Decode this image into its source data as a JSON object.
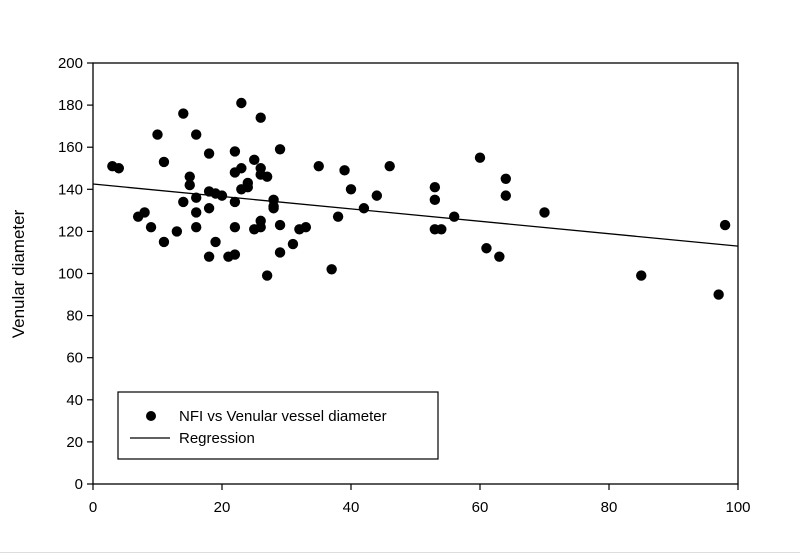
{
  "chart_data": {
    "type": "scatter",
    "title": "",
    "xlabel": "",
    "ylabel": "Venular diameter",
    "xlim": [
      0,
      100
    ],
    "ylim": [
      0,
      200
    ],
    "xticks": [
      0,
      20,
      40,
      60,
      80,
      100
    ],
    "yticks": [
      0,
      20,
      40,
      60,
      80,
      100,
      120,
      140,
      160,
      180,
      200
    ],
    "grid": false,
    "legend_position": "bottom-left",
    "series": [
      {
        "name": "NFI vs Venular vessel diameter",
        "kind": "scatter",
        "color": "#000000",
        "points": [
          [
            3,
            151
          ],
          [
            4,
            150
          ],
          [
            7,
            127
          ],
          [
            8,
            129
          ],
          [
            9,
            122
          ],
          [
            10,
            166
          ],
          [
            11,
            153
          ],
          [
            11,
            115
          ],
          [
            13,
            120
          ],
          [
            14,
            176
          ],
          [
            14,
            134
          ],
          [
            15,
            146
          ],
          [
            15,
            142
          ],
          [
            16,
            166
          ],
          [
            16,
            136
          ],
          [
            16,
            129
          ],
          [
            16,
            122
          ],
          [
            18,
            157
          ],
          [
            18,
            139
          ],
          [
            18,
            131
          ],
          [
            18,
            108
          ],
          [
            19,
            138
          ],
          [
            19,
            115
          ],
          [
            20,
            137
          ],
          [
            21,
            108
          ],
          [
            22,
            158
          ],
          [
            22,
            148
          ],
          [
            22,
            134
          ],
          [
            22,
            122
          ],
          [
            22,
            109
          ],
          [
            23,
            181
          ],
          [
            23,
            150
          ],
          [
            23,
            140
          ],
          [
            24,
            143
          ],
          [
            24,
            141
          ],
          [
            25,
            154
          ],
          [
            25,
            121
          ],
          [
            26,
            174
          ],
          [
            26,
            150
          ],
          [
            26,
            147
          ],
          [
            26,
            125
          ],
          [
            26,
            122
          ],
          [
            27,
            146
          ],
          [
            27,
            99
          ],
          [
            28,
            135
          ],
          [
            28,
            132
          ],
          [
            28,
            131
          ],
          [
            29,
            159
          ],
          [
            29,
            123
          ],
          [
            29,
            110
          ],
          [
            31,
            114
          ],
          [
            32,
            121
          ],
          [
            33,
            122
          ],
          [
            35,
            151
          ],
          [
            37,
            102
          ],
          [
            38,
            127
          ],
          [
            39,
            149
          ],
          [
            40,
            140
          ],
          [
            42,
            131
          ],
          [
            44,
            137
          ],
          [
            46,
            151
          ],
          [
            53,
            141
          ],
          [
            53,
            135
          ],
          [
            53,
            121
          ],
          [
            54,
            121
          ],
          [
            56,
            127
          ],
          [
            60,
            155
          ],
          [
            61,
            112
          ],
          [
            63,
            108
          ],
          [
            64,
            145
          ],
          [
            64,
            137
          ],
          [
            70,
            129
          ],
          [
            85,
            99
          ],
          [
            97,
            90
          ],
          [
            98,
            123
          ]
        ]
      },
      {
        "name": "Regression",
        "kind": "line",
        "color": "#000000",
        "x": [
          0,
          100
        ],
        "y": [
          142.5,
          113
        ]
      }
    ]
  }
}
